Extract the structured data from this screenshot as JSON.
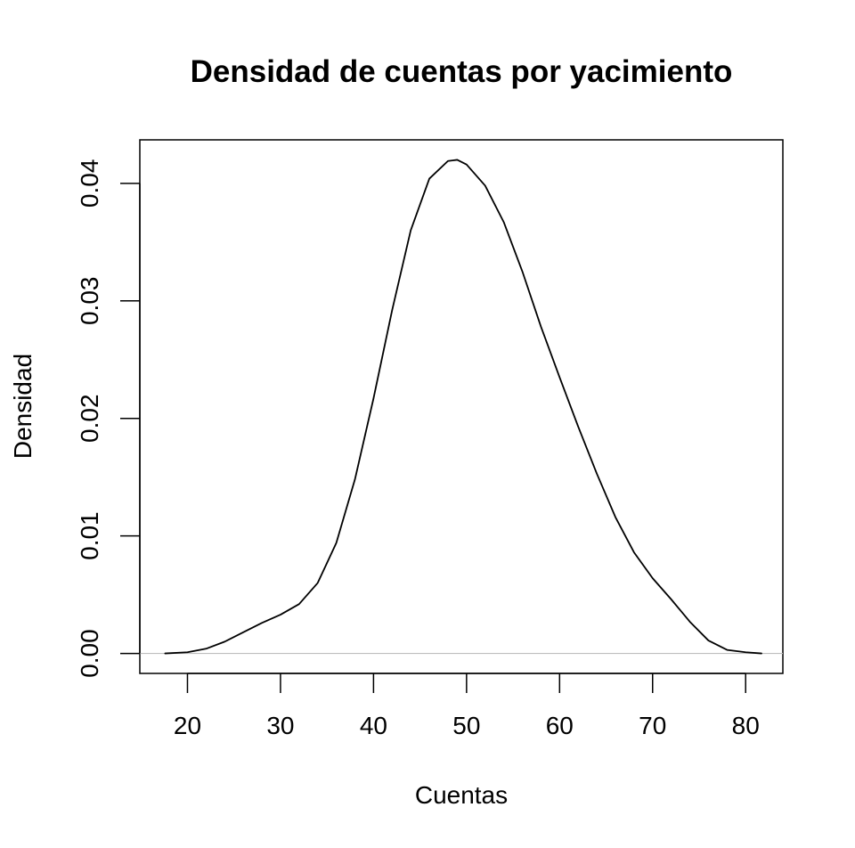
{
  "chart_data": {
    "type": "line",
    "title": "Densidad de cuentas por yacimiento",
    "xlabel": "Cuentas",
    "ylabel": "Densidad",
    "xlim": [
      14.88,
      84.0
    ],
    "ylim": [
      -0.0017,
      0.0437
    ],
    "x_ticks": [
      20,
      30,
      40,
      50,
      60,
      70,
      80
    ],
    "x_tick_labels": [
      "20",
      "30",
      "40",
      "50",
      "60",
      "70",
      "80"
    ],
    "y_ticks": [
      0.0,
      0.01,
      0.02,
      0.03,
      0.04
    ],
    "y_tick_labels": [
      "0.00",
      "0.01",
      "0.02",
      "0.03",
      "0.04"
    ],
    "baseline": 0,
    "grid": false,
    "legend": "none",
    "line_color": "#000000",
    "baseline_color": "#bebebe",
    "series": [
      {
        "x": [
          17.6,
          20,
          22,
          24,
          26,
          28,
          30,
          32,
          34,
          36,
          38,
          40,
          42,
          44,
          46,
          48,
          49,
          50,
          52,
          54,
          56,
          58,
          60,
          62,
          64,
          66,
          68,
          70,
          72,
          74,
          76,
          78,
          80,
          81.7
        ],
        "y": [
          0.0,
          0.0001,
          0.0004,
          0.001,
          0.0018,
          0.0026,
          0.0033,
          0.0042,
          0.006,
          0.0094,
          0.0148,
          0.0217,
          0.0292,
          0.036,
          0.0404,
          0.0419,
          0.042,
          0.0416,
          0.0398,
          0.0367,
          0.0325,
          0.0278,
          0.0235,
          0.0193,
          0.0153,
          0.0116,
          0.0086,
          0.0064,
          0.0046,
          0.0027,
          0.0011,
          0.0003,
          0.0001,
          0.0
        ]
      }
    ]
  }
}
